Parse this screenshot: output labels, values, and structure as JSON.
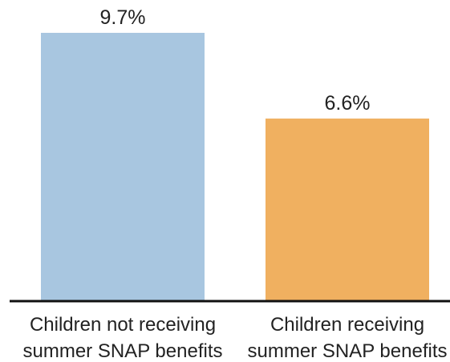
{
  "chart_data": {
    "type": "bar",
    "categories": [
      [
        "Children not receiving",
        "summer SNAP benefits"
      ],
      [
        "Children receiving",
        "summer SNAP benefits"
      ]
    ],
    "values": [
      9.7,
      6.6
    ],
    "value_labels": [
      "9.7%",
      "6.6%"
    ],
    "colors": [
      "#a8c6e0",
      "#f0b060"
    ],
    "axis_color": "#111111",
    "ylim": [
      0,
      9.7
    ],
    "grid": false,
    "legend": "none"
  }
}
